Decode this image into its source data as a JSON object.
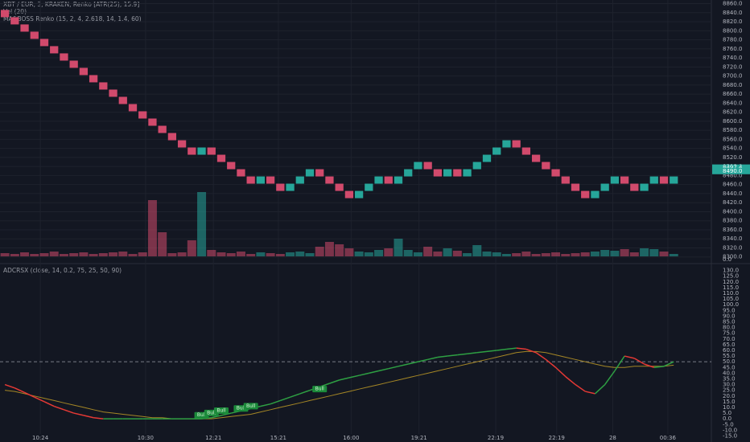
{
  "chart_data": [
    {
      "type": "renko",
      "title": "XBT / EUR, 3, KRAKEN, Renko [ATR(25), 15.9]",
      "indicator_labels": [
        "Vol (20)",
        "MA&BOSS Renko (15, 2, 4, 2.618, 14, 1.4, 60)"
      ],
      "values": [
        8830,
        8814,
        8798,
        8782,
        8766,
        8750,
        8734,
        8718,
        8702,
        8686,
        8670,
        8654,
        8638,
        8622,
        8606,
        8590,
        8574,
        8558,
        8542,
        8526,
        8542,
        8526,
        8510,
        8494,
        8478,
        8462,
        8478,
        8462,
        8446,
        8462,
        8478,
        8494,
        8478,
        8462,
        8446,
        8430,
        8446,
        8462,
        8478,
        8462,
        8478,
        8494,
        8510,
        8494,
        8478,
        8494,
        8478,
        8494,
        8510,
        8526,
        8542,
        8558,
        8542,
        8526,
        8510,
        8494,
        8478,
        8462,
        8446,
        8430,
        8446,
        8462,
        8478,
        8462,
        8446,
        8462,
        8478,
        8462,
        8478
      ],
      "volume": [
        4,
        3,
        5,
        3,
        4,
        6,
        3,
        4,
        5,
        3,
        4,
        5,
        6,
        3,
        5,
        70,
        30,
        4,
        5,
        20,
        80,
        8,
        5,
        4,
        6,
        3,
        5,
        4,
        3,
        5,
        6,
        4,
        12,
        18,
        15,
        10,
        6,
        5,
        8,
        10,
        22,
        8,
        5,
        12,
        6,
        10,
        7,
        4,
        14,
        6,
        5,
        3,
        4,
        6,
        3,
        4,
        5,
        3,
        4,
        5,
        6,
        8,
        7,
        9,
        5,
        10,
        9,
        6,
        3
      ],
      "up_color": "#26a69a",
      "down_color": "#d14a6c",
      "ylim": [
        8296,
        8868
      ],
      "yticks": [
        {
          "value": 8300,
          "label": "8300.0"
        },
        {
          "value": 8320,
          "label": "8320.0"
        },
        {
          "value": 8340,
          "label": "8340.0"
        },
        {
          "value": 8360,
          "label": "8360.0"
        },
        {
          "value": 8380,
          "label": "8380.0"
        },
        {
          "value": 8400,
          "label": "8400.0"
        },
        {
          "value": 8420,
          "label": "8420.0"
        },
        {
          "value": 8440,
          "label": "8440.0"
        },
        {
          "value": 8460,
          "label": "8460.0"
        },
        {
          "value": 8480,
          "label": "8480.0"
        },
        {
          "value": 8500,
          "label": "8500.0"
        },
        {
          "value": 8520,
          "label": "8520.0"
        },
        {
          "value": 8540,
          "label": "8540.0"
        },
        {
          "value": 8560,
          "label": "8560.0"
        },
        {
          "value": 8580,
          "label": "8580.0"
        },
        {
          "value": 8600,
          "label": "8600.0"
        },
        {
          "value": 8620,
          "label": "8620.0"
        },
        {
          "value": 8640,
          "label": "8640.0"
        },
        {
          "value": 8660,
          "label": "8660.0"
        },
        {
          "value": 8680,
          "label": "8680.0"
        },
        {
          "value": 8700,
          "label": "8700.0"
        },
        {
          "value": 8720,
          "label": "8720.0"
        },
        {
          "value": 8740,
          "label": "8740.0"
        },
        {
          "value": 8760,
          "label": "8760.0"
        },
        {
          "value": 8780,
          "label": "8780.0"
        },
        {
          "value": 8800,
          "label": "8800.0"
        },
        {
          "value": 8820,
          "label": "8820.0"
        },
        {
          "value": 8840,
          "label": "8840.0"
        },
        {
          "value": 8860,
          "label": "8860.0"
        }
      ],
      "volume_ylim": [
        0,
        100
      ],
      "volume_ticks": [
        {
          "value": 0,
          "label": "0.0"
        }
      ],
      "price_labels": [
        {
          "value": 8497.4,
          "label": "8497.4"
        },
        {
          "value": 8490,
          "label": "8490.0"
        }
      ],
      "xlim": [
        -0.5,
        71.5
      ],
      "xticks": [
        {
          "value": 3.6,
          "label": "10:24"
        },
        {
          "value": 14.3,
          "label": "10:30"
        },
        {
          "value": 21.2,
          "label": "12:21"
        },
        {
          "value": 27.8,
          "label": "15:21"
        },
        {
          "value": 35.2,
          "label": "16:00"
        },
        {
          "value": 42.1,
          "label": "19:21"
        },
        {
          "value": 49.9,
          "label": "22:19"
        },
        {
          "value": 56.1,
          "label": "22:19"
        },
        {
          "value": 61.8,
          "label": "28"
        },
        {
          "value": 67.4,
          "label": "00:36"
        }
      ],
      "grid": true
    },
    {
      "type": "oscillator",
      "title": "ADCRSX (close, 14, 0.2, 75, 25, 50, 90)",
      "values": [
        30,
        27,
        23,
        19,
        15,
        11,
        8,
        5,
        3,
        1,
        0,
        0,
        0,
        0,
        0,
        0,
        0,
        0,
        0,
        0,
        0,
        1,
        3,
        5,
        7,
        9,
        11,
        13,
        16,
        19,
        22,
        25,
        28,
        31,
        34,
        36,
        38,
        40,
        42,
        44,
        46,
        48,
        50,
        52,
        54,
        55,
        56,
        57,
        58,
        59,
        60,
        61,
        62,
        61,
        58,
        52,
        45,
        37,
        30,
        24,
        22,
        30,
        42,
        55,
        53,
        48,
        45,
        46,
        50
      ],
      "signal": [
        25,
        24,
        22,
        20,
        18,
        16,
        14,
        12,
        10,
        8,
        6,
        5,
        4,
        3,
        2,
        1,
        1,
        0,
        0,
        0,
        0,
        0,
        1,
        2,
        3,
        4,
        6,
        8,
        10,
        12,
        14,
        16,
        18,
        20,
        22,
        24,
        26,
        28,
        30,
        32,
        34,
        36,
        38,
        40,
        42,
        44,
        46,
        48,
        50,
        52,
        54,
        56,
        58,
        59,
        59,
        58,
        56,
        54,
        52,
        50,
        48,
        46,
        45,
        45,
        46,
        46,
        46,
        46,
        47
      ],
      "up_color": "#2ea043",
      "down_color": "#e53935",
      "signal_color": "#c9a227",
      "midline": 50,
      "ylim": [
        -17.5,
        132.5
      ],
      "yticks": [
        {
          "value": -15,
          "label": "-15.0"
        },
        {
          "value": -10,
          "label": "-10.0"
        },
        {
          "value": -5,
          "label": "-5.0"
        },
        {
          "value": 0,
          "label": "0.0"
        },
        {
          "value": 5,
          "label": "5.0"
        },
        {
          "value": 10,
          "label": "10.0"
        },
        {
          "value": 15,
          "label": "15.0"
        },
        {
          "value": 20,
          "label": "20.0"
        },
        {
          "value": 25,
          "label": "25.0"
        },
        {
          "value": 30,
          "label": "30.0"
        },
        {
          "value": 35,
          "label": "35.0"
        },
        {
          "value": 40,
          "label": "40.0"
        },
        {
          "value": 45,
          "label": "45.0"
        },
        {
          "value": 50,
          "label": "50.0"
        },
        {
          "value": 55,
          "label": "55.0"
        },
        {
          "value": 60,
          "label": "60.0"
        },
        {
          "value": 65,
          "label": "65.0"
        },
        {
          "value": 70,
          "label": "70.0"
        },
        {
          "value": 75,
          "label": "75.0"
        },
        {
          "value": 80,
          "label": "80.0"
        },
        {
          "value": 85,
          "label": "85.0"
        },
        {
          "value": 90,
          "label": "90.0"
        },
        {
          "value": 95,
          "label": "95.0"
        },
        {
          "value": 100,
          "label": "100.0"
        },
        {
          "value": 105,
          "label": "105.0"
        },
        {
          "value": 110,
          "label": "110.0"
        },
        {
          "value": 115,
          "label": "115.0"
        },
        {
          "value": 120,
          "label": "120.0"
        },
        {
          "value": 125,
          "label": "125.0"
        },
        {
          "value": 130,
          "label": "130.0"
        }
      ],
      "annotations": [
        {
          "text": "Bull",
          "x": 20,
          "y": 1
        },
        {
          "text": "Bull",
          "x": 21,
          "y": 3
        },
        {
          "text": "Bull",
          "x": 22,
          "y": 5
        },
        {
          "text": "Bull",
          "x": 24,
          "y": 7
        },
        {
          "text": "Bull",
          "x": 25,
          "y": 9
        },
        {
          "text": "Bull",
          "x": 32,
          "y": 24
        }
      ]
    }
  ]
}
